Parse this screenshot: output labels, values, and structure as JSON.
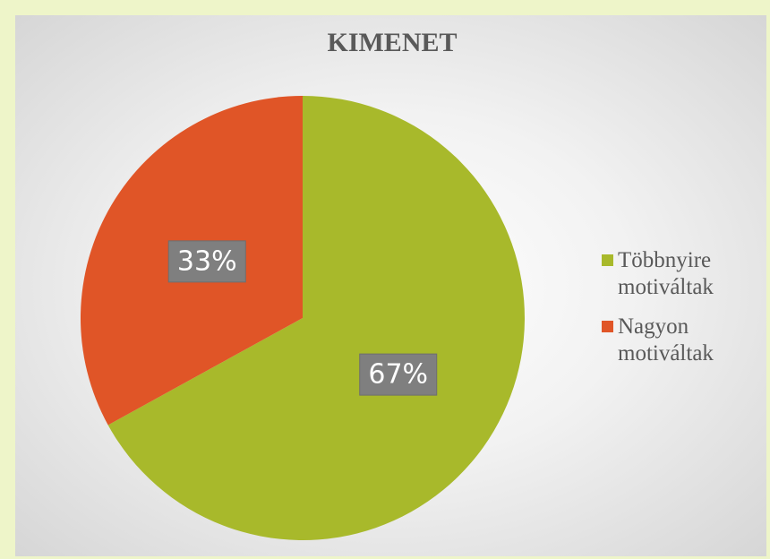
{
  "chart_data": {
    "type": "pie",
    "title": "KIMENET",
    "categories": [
      "Többnyire motiváltak",
      "Nagyon motiváltak"
    ],
    "values": [
      67,
      33
    ],
    "value_labels": [
      "67%",
      "33%"
    ],
    "colors": [
      "#a8b92b",
      "#e05527"
    ],
    "legend": "right"
  }
}
